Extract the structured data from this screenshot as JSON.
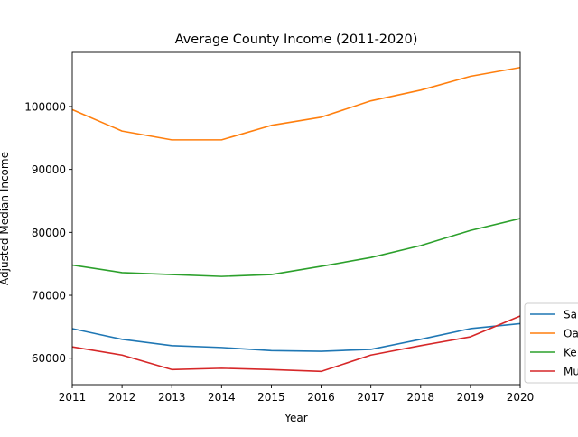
{
  "chart_data": {
    "type": "line",
    "title": "Average County Income (2011-2020)",
    "xlabel": "Year",
    "ylabel": "Adjusted Median Income",
    "x": [
      2011,
      2012,
      2013,
      2014,
      2015,
      2016,
      2017,
      2018,
      2019,
      2020
    ],
    "xlim": [
      2011,
      2020
    ],
    "ylim": [
      55800,
      108600
    ],
    "yticks": [
      60000,
      70000,
      80000,
      90000,
      100000
    ],
    "grid": false,
    "legend_position": "right, outside plot (clipped)",
    "series": [
      {
        "name": "Sa",
        "color": "#1f77b4",
        "values": [
          64700,
          63000,
          62000,
          61700,
          61200,
          61100,
          61400,
          63000,
          64700,
          65500
        ]
      },
      {
        "name": "Oa",
        "color": "#ff7f0e",
        "values": [
          99500,
          96100,
          94700,
          94700,
          97000,
          98300,
          100900,
          102600,
          104800,
          106200
        ]
      },
      {
        "name": "Ke",
        "color": "#2ca02c",
        "values": [
          74800,
          73600,
          73300,
          73000,
          73300,
          74600,
          76000,
          77900,
          80300,
          82200
        ]
      },
      {
        "name": "Mu",
        "color": "#d62728",
        "values": [
          61800,
          60500,
          58200,
          58400,
          58200,
          57900,
          60500,
          62000,
          63400,
          66700
        ]
      }
    ]
  }
}
